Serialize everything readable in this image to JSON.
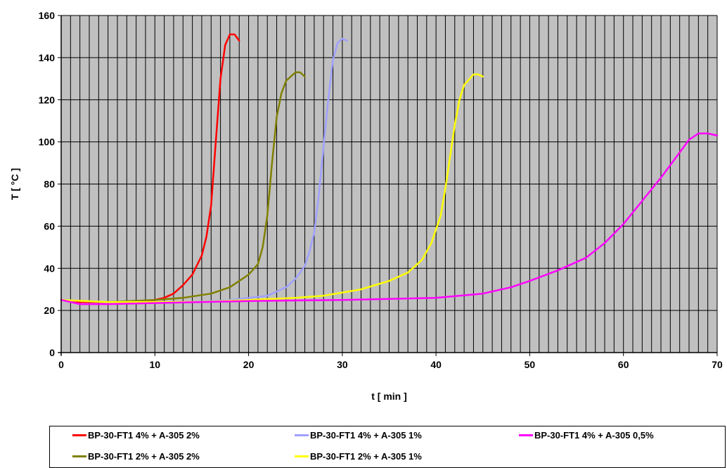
{
  "chart_data": {
    "type": "line",
    "title": "",
    "xlabel": "t [ min ]",
    "ylabel": "T [ °C ]",
    "xlim": [
      0,
      70
    ],
    "ylim": [
      0,
      160
    ],
    "xticks": [
      0,
      10,
      20,
      30,
      40,
      50,
      60,
      70
    ],
    "yticks": [
      0,
      20,
      40,
      60,
      80,
      100,
      120,
      140,
      160
    ],
    "grid": true,
    "plot_background": "#c0c0c0",
    "legend_position": "bottom",
    "series": [
      {
        "name": "BP-30-FT1 4% + A-305 2%",
        "color": "#ff0000",
        "points": [
          [
            0,
            25
          ],
          [
            2,
            24
          ],
          [
            5,
            24
          ],
          [
            8,
            24
          ],
          [
            10,
            25
          ],
          [
            11,
            26
          ],
          [
            12,
            28
          ],
          [
            13,
            32
          ],
          [
            14,
            37
          ],
          [
            15,
            46
          ],
          [
            15.5,
            55
          ],
          [
            16,
            70
          ],
          [
            16.5,
            100
          ],
          [
            17,
            130
          ],
          [
            17.5,
            146
          ],
          [
            18,
            151
          ],
          [
            18.5,
            151
          ],
          [
            19,
            148
          ]
        ]
      },
      {
        "name": "BP-30-FT1 2% + A-305 2%",
        "color": "#808000",
        "points": [
          [
            0,
            25
          ],
          [
            5,
            24
          ],
          [
            10,
            25
          ],
          [
            13,
            26
          ],
          [
            16,
            28
          ],
          [
            18,
            31
          ],
          [
            20,
            37
          ],
          [
            21,
            42
          ],
          [
            21.5,
            50
          ],
          [
            22,
            65
          ],
          [
            22.5,
            90
          ],
          [
            23,
            112
          ],
          [
            23.5,
            123
          ],
          [
            24,
            129
          ],
          [
            25,
            133
          ],
          [
            25.5,
            133
          ],
          [
            26,
            131
          ]
        ]
      },
      {
        "name": "BP-30-FT1 4% + A-305 1%",
        "color": "#a0a0ff",
        "points": [
          [
            0,
            25
          ],
          [
            5,
            24
          ],
          [
            10,
            24
          ],
          [
            15,
            24
          ],
          [
            18,
            25
          ],
          [
            20,
            26
          ],
          [
            22,
            27
          ],
          [
            24,
            31
          ],
          [
            25,
            35
          ],
          [
            26,
            41
          ],
          [
            26.5,
            48
          ],
          [
            27,
            57
          ],
          [
            27.5,
            75
          ],
          [
            28,
            98
          ],
          [
            28.5,
            120
          ],
          [
            29,
            139
          ],
          [
            29.5,
            147
          ],
          [
            30,
            149
          ],
          [
            30.5,
            148
          ]
        ]
      },
      {
        "name": "BP-30-FT1 2% + A-305 1%",
        "color": "#ffff00",
        "points": [
          [
            0,
            25
          ],
          [
            5,
            24
          ],
          [
            10,
            24
          ],
          [
            15,
            24
          ],
          [
            20,
            25
          ],
          [
            25,
            26
          ],
          [
            28,
            27
          ],
          [
            32,
            30
          ],
          [
            35,
            34
          ],
          [
            37,
            38
          ],
          [
            38.5,
            44
          ],
          [
            39.5,
            52
          ],
          [
            40.5,
            65
          ],
          [
            41,
            78
          ],
          [
            41.5,
            93
          ],
          [
            42,
            108
          ],
          [
            42.5,
            120
          ],
          [
            43,
            127
          ],
          [
            44,
            132
          ],
          [
            44.5,
            132
          ],
          [
            45,
            131
          ]
        ]
      },
      {
        "name": "BP-30-FT1 4% + A-305 0,5%",
        "color": "#ff00ff",
        "points": [
          [
            0,
            25
          ],
          [
            2,
            23
          ],
          [
            5,
            23
          ],
          [
            10,
            23.5
          ],
          [
            20,
            24.5
          ],
          [
            30,
            25
          ],
          [
            40,
            26
          ],
          [
            45,
            28
          ],
          [
            48,
            31
          ],
          [
            50,
            34
          ],
          [
            53,
            39
          ],
          [
            56,
            45
          ],
          [
            58,
            52
          ],
          [
            60,
            61
          ],
          [
            62,
            72
          ],
          [
            64,
            83
          ],
          [
            66,
            95
          ],
          [
            67,
            101
          ],
          [
            68,
            104
          ],
          [
            69,
            104
          ],
          [
            70,
            103
          ]
        ]
      }
    ]
  }
}
